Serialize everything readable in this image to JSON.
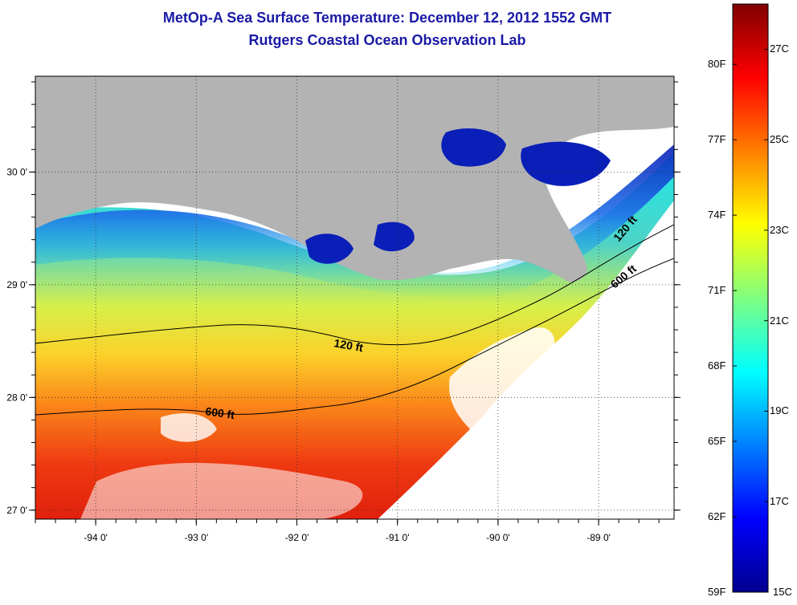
{
  "title": {
    "line1": "MetOp-A Sea Surface Temperature:  December 12, 2012 1552 GMT",
    "line2": "Rutgers Coastal Ocean Observation Lab"
  },
  "map": {
    "lon_range": [
      -94.6,
      -88.25
    ],
    "lat_range": [
      26.92,
      30.85
    ],
    "x_ticks": [
      "-94 0'",
      "-93 0'",
      "-92 0'",
      "-91 0'",
      "-90 0'",
      "-89 0'"
    ],
    "y_ticks": [
      "30 0'",
      "29 0'",
      "28 0'",
      "27 0'"
    ],
    "land_color": "#b3b3b3",
    "missing_color": "#ffffff",
    "contours": [
      {
        "label": "120 ft",
        "depth_ft": 120
      },
      {
        "label": "600 ft",
        "depth_ft": 600
      },
      {
        "label": "120 ft",
        "depth_ft": 120
      },
      {
        "label": "600 ft",
        "depth_ft": 600
      }
    ]
  },
  "colorbar": {
    "min_c": 15,
    "max_c": 28,
    "celsius_labels": [
      "27C",
      "25C",
      "23C",
      "21C",
      "19C",
      "17C",
      "15C"
    ],
    "fahrenheit_labels": [
      "80F",
      "77F",
      "74F",
      "71F",
      "68F",
      "65F",
      "62F",
      "59F"
    ],
    "colormap": "jet"
  }
}
